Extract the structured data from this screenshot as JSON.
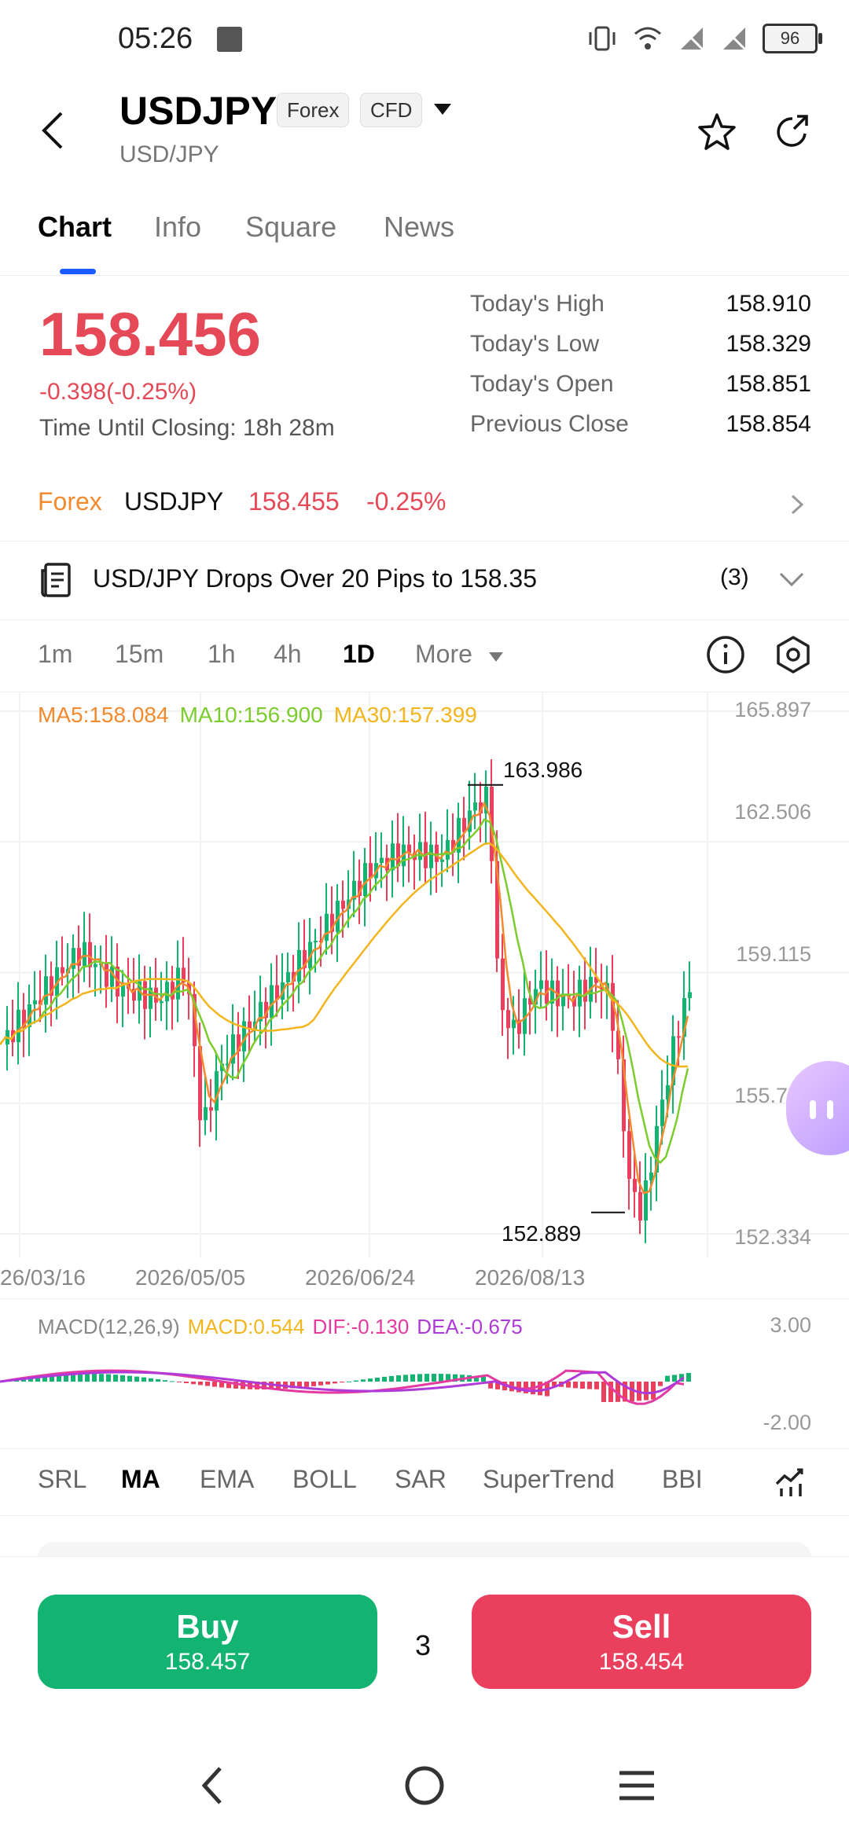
{
  "status_bar": {
    "time": "05:26",
    "battery": "96"
  },
  "header": {
    "symbol": "USDJPY",
    "subsymbol": "USD/JPY",
    "tags": [
      "Forex",
      "CFD"
    ]
  },
  "tabs": [
    "Chart",
    "Info",
    "Square",
    "News"
  ],
  "quote": {
    "price": "158.456",
    "change": "-0.398(-0.25%)",
    "closing": "Time Until Closing: 18h 28m",
    "stats": [
      {
        "label": "Today's High",
        "value": "158.910"
      },
      {
        "label": "Today's Low",
        "value": "158.329"
      },
      {
        "label": "Today's Open",
        "value": "158.851"
      },
      {
        "label": "Previous Close",
        "value": "158.854"
      }
    ]
  },
  "forex_row": {
    "label": "Forex",
    "symbol": "USDJPY",
    "price": "158.455",
    "change": "-0.25%"
  },
  "news_row": {
    "text": "USD/JPY Drops Over 20 Pips to 158.35",
    "count": "(3)"
  },
  "intervals": [
    "1m",
    "15m",
    "1h",
    "4h",
    "1D",
    "More"
  ],
  "chart": {
    "ma_legend": {
      "ma5": "MA5:158.084",
      "ma10": "MA10:156.900",
      "ma30": "MA30:157.399"
    },
    "high_label": "163.986",
    "low_label": "152.889",
    "y_ticks": [
      "165.897",
      "162.506",
      "159.115",
      "155.724",
      "152.334"
    ],
    "x_ticks": [
      "26/03/16",
      "2026/05/05",
      "2026/06/24",
      "2026/08/13"
    ],
    "colors": {
      "up": "#13b472",
      "down": "#ea3f5d",
      "ma5": "#f28a2e",
      "ma10": "#7ccc2e",
      "ma30": "#f2b51c"
    }
  },
  "macd": {
    "name": "MACD(12,26,9)",
    "macd": "MACD:0.544",
    "dif": "DIF:-0.130",
    "dea": "DEA:-0.675",
    "y_top": "3.00",
    "y_bottom": "-2.00"
  },
  "indicators": [
    "SRL",
    "MA",
    "EMA",
    "BOLL",
    "SAR",
    "SuperTrend",
    "BBI"
  ],
  "trade": {
    "buy_label": "Buy",
    "buy_price": "158.457",
    "quantity": "3",
    "sell_label": "Sell",
    "sell_price": "158.454"
  }
}
